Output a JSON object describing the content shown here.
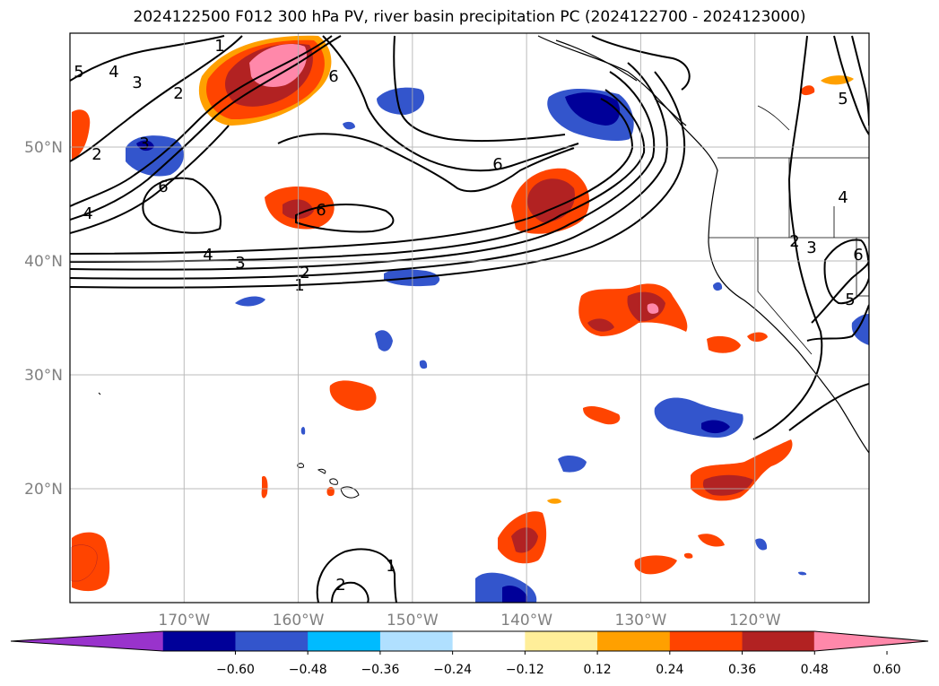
{
  "title": "2024122500 F012 300 hPa PV, river basin precipitation PC (2024122700 - 2024123000)",
  "map": {
    "extent": {
      "lon_min": -180,
      "lon_max": -110,
      "lat_min": 10,
      "lat_max": 60
    },
    "projection": "PlateCarree",
    "lat_ticks": [
      {
        "value": 50,
        "label": "50°N"
      },
      {
        "value": 40,
        "label": "40°N"
      },
      {
        "value": 30,
        "label": "30°N"
      },
      {
        "value": 20,
        "label": "20°N"
      }
    ],
    "lon_ticks": [
      {
        "value": -170,
        "label": "170°W"
      },
      {
        "value": -160,
        "label": "160°W"
      },
      {
        "value": -150,
        "label": "150°W"
      },
      {
        "value": -140,
        "label": "140°W"
      },
      {
        "value": -130,
        "label": "130°W"
      },
      {
        "value": -120,
        "label": "120°W"
      }
    ],
    "gridlines": true
  },
  "pv_contour_labels": [
    "5",
    "4",
    "3",
    "2",
    "1",
    "2",
    "3",
    "6",
    "6",
    "6",
    "4",
    "3",
    "2",
    "1",
    "6",
    "4",
    "3",
    "2",
    "4",
    "5",
    "6",
    "5",
    "1",
    "2"
  ],
  "colorbar": {
    "ticks": [
      "−0.60",
      "−0.48",
      "−0.36",
      "−0.24",
      "−0.12",
      "0.12",
      "0.24",
      "0.36",
      "0.48",
      "0.60"
    ],
    "colors": [
      "#9933cc",
      "#000099",
      "#3355cc",
      "#00bbff",
      "#b0e0ff",
      "#ffffff",
      "#ffee99",
      "#ffa000",
      "#ff4400",
      "#b22222",
      "#ff88aa"
    ],
    "extend": "both"
  },
  "colors": {
    "pos_low": "#ffee99",
    "pos_mid": "#ffa000",
    "pos_high": "#ff4400",
    "pos_higher": "#b22222",
    "pos_max": "#ff88aa",
    "neg_low": "#b0e0ff",
    "neg_mid": "#00bbff",
    "neg_high": "#3355cc",
    "neg_max": "#000099",
    "grid": "#b0b0b0",
    "tick_label": "#808080"
  }
}
